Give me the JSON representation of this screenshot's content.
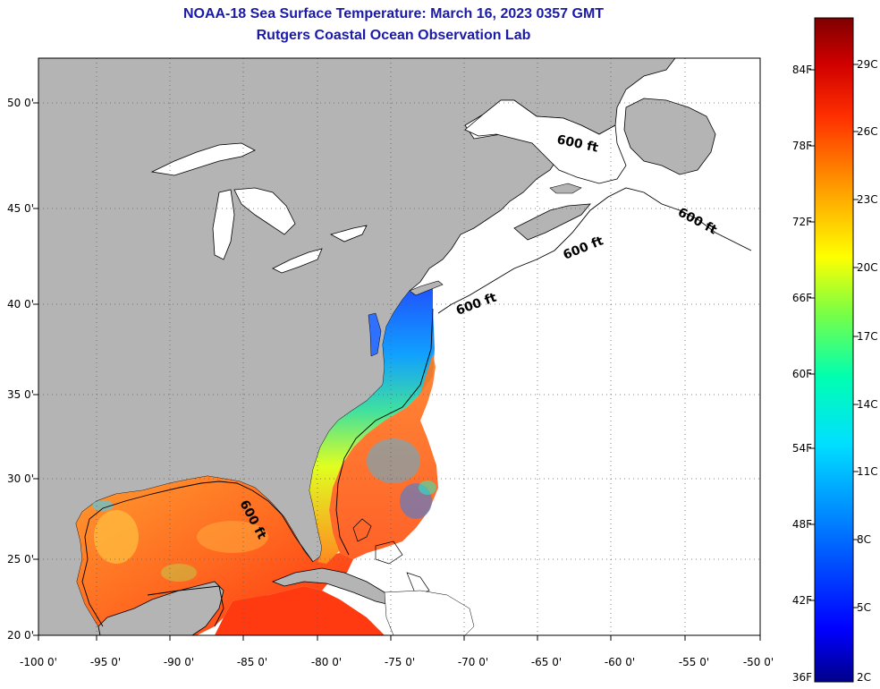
{
  "header": {
    "title": "NOAA-18 Sea Surface Temperature:  March 16, 2023 0357 GMT",
    "subtitle": "Rutgers Coastal Ocean Observation Lab"
  },
  "map": {
    "lat_ticks": [
      "50 0'",
      "45 0'",
      "40 0'",
      "35 0'",
      "30 0'",
      "25 0'",
      "20 0'"
    ],
    "lon_ticks": [
      "-100 0'",
      "-95 0'",
      "-90 0'",
      "-85 0'",
      "-80 0'",
      "-75 0'",
      "-70 0'",
      "-65 0'",
      "-60 0'",
      "-55 0'",
      "-50 0'"
    ],
    "extent": {
      "lon_min": -100,
      "lon_max": -50,
      "lat_min": 20,
      "lat_max": 52.5
    },
    "grid": true,
    "land_color": "#b4b4b4",
    "water_no_data_color": "#ffffff",
    "contour_labels": [
      "600 ft",
      "600 ft",
      "600 ft",
      "600 ft",
      "600 ft"
    ]
  },
  "colorbar": {
    "fahrenheit_labels": [
      "84F",
      "78F",
      "72F",
      "66F",
      "60F",
      "54F",
      "48F",
      "42F",
      "36F"
    ],
    "celsius_labels": [
      "29C",
      "26C",
      "23C",
      "20C",
      "17C",
      "14C",
      "11C",
      "8C",
      "5C",
      "2C"
    ],
    "range_c": [
      2,
      31
    ],
    "colors": [
      "#00008a",
      "#0000ff",
      "#0070ff",
      "#00d0ff",
      "#00ffc0",
      "#60ff60",
      "#e0ff00",
      "#ffd000",
      "#ff8000",
      "#ff2000",
      "#d00000",
      "#800000"
    ]
  }
}
